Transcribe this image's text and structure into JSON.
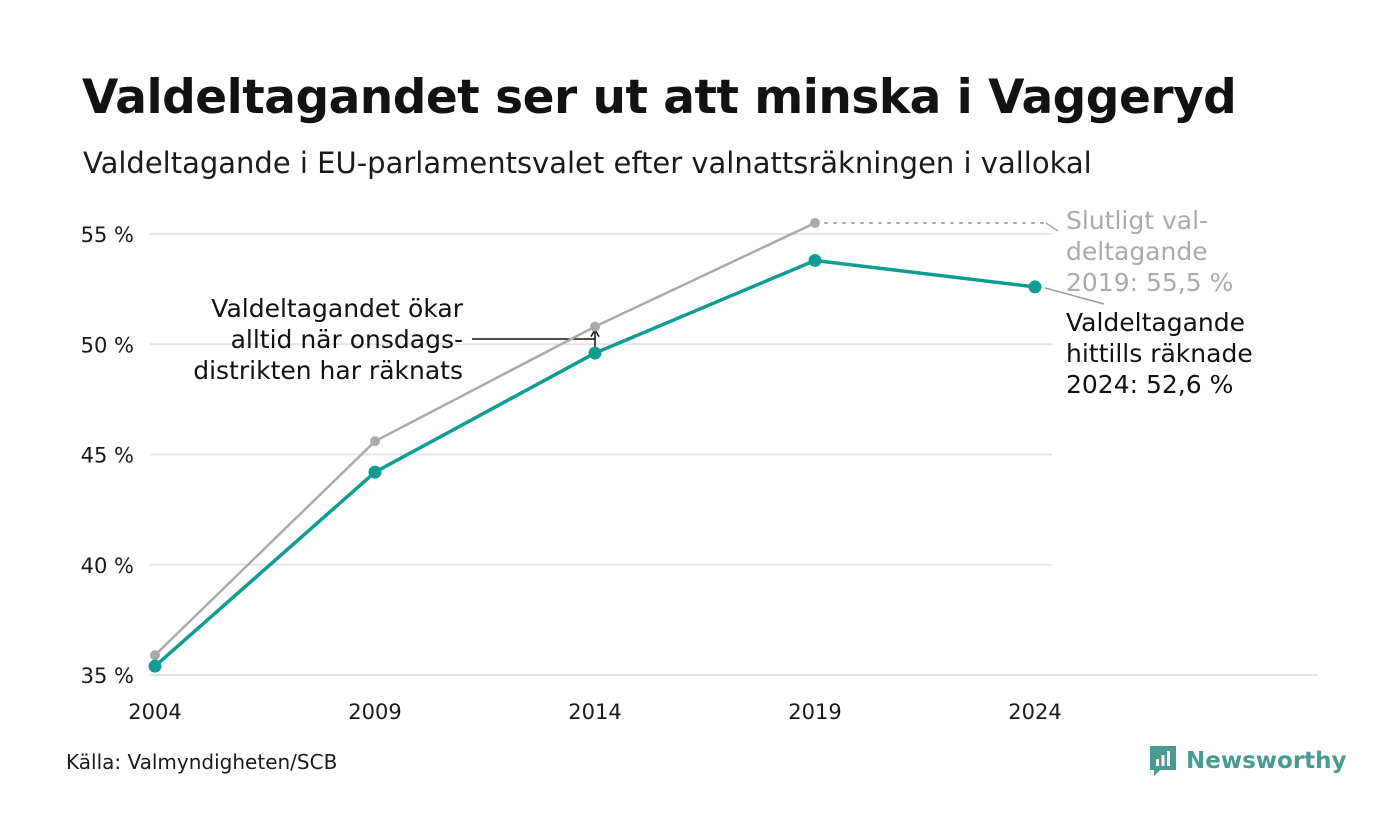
{
  "header": {
    "title": "Valdeltagandet ser ut att minska i Vaggeryd",
    "subtitle": "Valdeltagande i EU-parlamentsvalet efter valnattsräkningen i vallokal"
  },
  "footer": {
    "source": "Källa: Valmyndigheten/SCB",
    "brand": "Newsworthy"
  },
  "colors": {
    "primary_series": "#0e9c93",
    "final_series": "#aaaaaa",
    "gridline": "#e4e4e4",
    "brand": "#4a9a92"
  },
  "chart_data": {
    "type": "line",
    "x": [
      2004,
      2009,
      2014,
      2019,
      2024
    ],
    "ylim": [
      35,
      57
    ],
    "y_ticks": [
      35,
      40,
      45,
      50,
      55
    ],
    "y_tick_labels": [
      "35 %",
      "40 %",
      "45 %",
      "50 %",
      "55 %"
    ],
    "x_tick_labels": [
      "2004",
      "2009",
      "2014",
      "2019",
      "2024"
    ],
    "grid": true,
    "series": [
      {
        "key": "final",
        "values": [
          35.9,
          45.6,
          50.8,
          55.5,
          null
        ]
      },
      {
        "key": "preliminary",
        "values": [
          35.4,
          44.2,
          49.6,
          53.8,
          52.6
        ]
      }
    ],
    "annotations": {
      "wednesday": {
        "lines": [
          "Valdeltagandet ökar",
          "alltid när onsdags-",
          "distrikten har räknats"
        ]
      },
      "final_2019": {
        "lines": [
          "Slutligt val-",
          "deltagande",
          "2019: 55,5 %"
        ]
      },
      "current_2024": {
        "lines": [
          "Valdeltagande",
          "hittills räknade",
          "2024: 52,6 %"
        ]
      }
    }
  }
}
